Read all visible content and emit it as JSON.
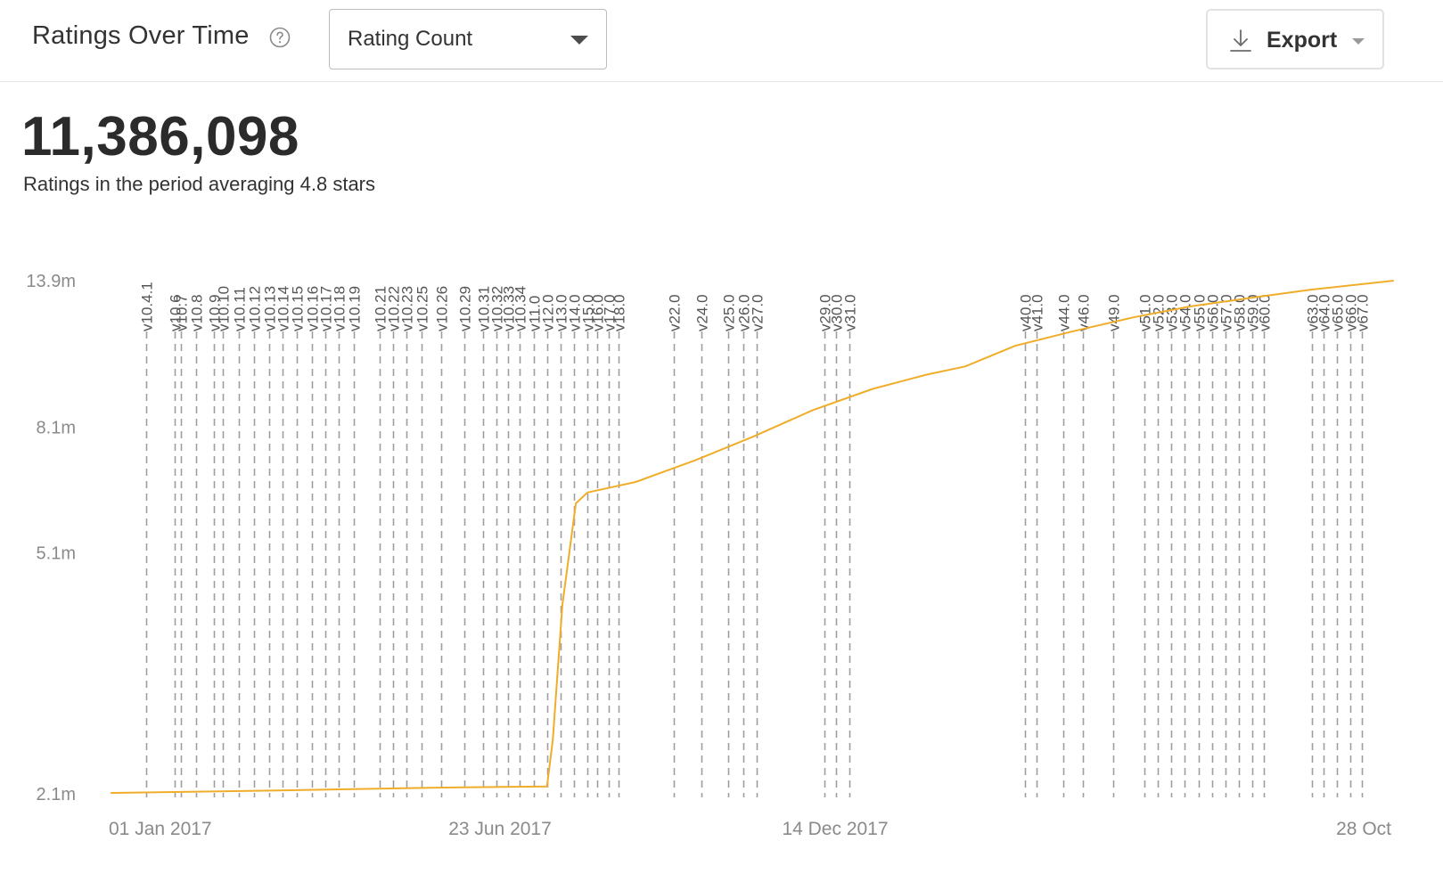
{
  "header": {
    "title": "Ratings Over Time",
    "help_icon": "question-circle-icon",
    "metric_select": {
      "selected": "Rating Count",
      "icon": "chevron-down-icon"
    },
    "export": {
      "label": "Export",
      "icon": "download-icon"
    }
  },
  "summary": {
    "total": "11,386,098",
    "caption": "Ratings in the period averaging 4.8 stars"
  },
  "colors": {
    "line": "#f0ad2a",
    "grid_dash": "#9e9e9e",
    "axis_text": "#8a8a8a",
    "label_text": "#555555"
  },
  "chart_data": {
    "type": "line",
    "x_start": "2017-01-01",
    "x_end": "2018-10-28",
    "x_ticks": [
      "01 Jan 2017",
      "23 Jun 2017",
      "14 Dec 2017",
      "28 Oct"
    ],
    "y_ticks": [
      "13.9m",
      "8.1m",
      "5.1m",
      "2.1m"
    ],
    "y_scale": "log",
    "ylim": [
      2.1,
      13.9
    ],
    "series": [
      {
        "values": [
          [
            "2017-01-01",
            2.1
          ],
          [
            "2017-04-01",
            2.12
          ],
          [
            "2017-06-15",
            2.14
          ],
          [
            "2017-08-15",
            2.15
          ],
          [
            "2017-08-18",
            2.55
          ],
          [
            "2017-08-23",
            4.2
          ],
          [
            "2017-08-30",
            6.1
          ],
          [
            "2017-09-05",
            6.35
          ],
          [
            "2017-09-30",
            6.6
          ],
          [
            "2017-10-31",
            7.15
          ],
          [
            "2017-11-30",
            7.8
          ],
          [
            "2017-12-31",
            8.6
          ],
          [
            "2018-01-31",
            9.3
          ],
          [
            "2018-02-28",
            9.8
          ],
          [
            "2018-03-20",
            10.1
          ],
          [
            "2018-04-15",
            10.9
          ],
          [
            "2018-05-15",
            11.5
          ],
          [
            "2018-06-15",
            12.1
          ],
          [
            "2018-07-15",
            12.6
          ],
          [
            "2018-08-15",
            13.0
          ],
          [
            "2018-09-15",
            13.4
          ],
          [
            "2018-10-28",
            13.85
          ]
        ]
      }
    ],
    "releases": [
      [
        "v10.4.1",
        "2017-01-19"
      ],
      [
        "v10.6",
        "2017-02-03"
      ],
      [
        "v10.7",
        "2017-02-06"
      ],
      [
        "v10.8",
        "2017-02-14"
      ],
      [
        "v10.9",
        "2017-02-23"
      ],
      [
        "v10.10",
        "2017-02-28"
      ],
      [
        "v10.11",
        "2017-03-08"
      ],
      [
        "v10.12",
        "2017-03-16"
      ],
      [
        "v10.13",
        "2017-03-24"
      ],
      [
        "v10.14",
        "2017-03-31"
      ],
      [
        "v10.15",
        "2017-04-07"
      ],
      [
        "v10.16",
        "2017-04-15"
      ],
      [
        "v10.17",
        "2017-04-22"
      ],
      [
        "v10.18",
        "2017-04-29"
      ],
      [
        "v10.19",
        "2017-05-07"
      ],
      [
        "v10.21",
        "2017-05-20"
      ],
      [
        "v10.22",
        "2017-05-27"
      ],
      [
        "v10.23",
        "2017-06-03"
      ],
      [
        "v10.25",
        "2017-06-11"
      ],
      [
        "v10.26",
        "2017-06-21"
      ],
      [
        "v10.29",
        "2017-07-03"
      ],
      [
        "v10.31",
        "2017-07-13"
      ],
      [
        "v10.32",
        "2017-07-20"
      ],
      [
        "v10.33",
        "2017-07-26"
      ],
      [
        "v10.34",
        "2017-08-01"
      ],
      [
        "v11.0",
        "2017-08-08"
      ],
      [
        "v12.0",
        "2017-08-15"
      ],
      [
        "v13.0",
        "2017-08-22"
      ],
      [
        "v14.0",
        "2017-08-29"
      ],
      [
        "v15.0",
        "2017-09-05"
      ],
      [
        "v16.0",
        "2017-09-10"
      ],
      [
        "v17.0",
        "2017-09-16"
      ],
      [
        "v18.0",
        "2017-09-21"
      ],
      [
        "v22.0",
        "2017-10-20"
      ],
      [
        "v24.0",
        "2017-11-03"
      ],
      [
        "v25.0",
        "2017-11-17"
      ],
      [
        "v26.0",
        "2017-11-25"
      ],
      [
        "v27.0",
        "2017-12-02"
      ],
      [
        "v29.0",
        "2018-01-06"
      ],
      [
        "v30.0",
        "2018-01-12"
      ],
      [
        "v31.0",
        "2018-01-19"
      ],
      [
        "v40.0",
        "2018-04-20"
      ],
      [
        "v41.0",
        "2018-04-26"
      ],
      [
        "v44.0",
        "2018-05-10"
      ],
      [
        "v46.0",
        "2018-05-20"
      ],
      [
        "v49.0",
        "2018-06-05"
      ],
      [
        "v51.0",
        "2018-06-21"
      ],
      [
        "v52.0",
        "2018-06-28"
      ],
      [
        "v53.0",
        "2018-07-05"
      ],
      [
        "v54.0",
        "2018-07-12"
      ],
      [
        "v55.0",
        "2018-07-19"
      ],
      [
        "v56.0",
        "2018-07-26"
      ],
      [
        "v57.0",
        "2018-08-02"
      ],
      [
        "v58.0",
        "2018-08-09"
      ],
      [
        "v59.0",
        "2018-08-16"
      ],
      [
        "v60.0",
        "2018-08-22"
      ],
      [
        "v63.0",
        "2018-09-16"
      ],
      [
        "v64.0",
        "2018-09-22"
      ],
      [
        "v65.0",
        "2018-09-29"
      ],
      [
        "v66.0",
        "2018-10-06"
      ],
      [
        "v67.0",
        "2018-10-12"
      ]
    ]
  }
}
